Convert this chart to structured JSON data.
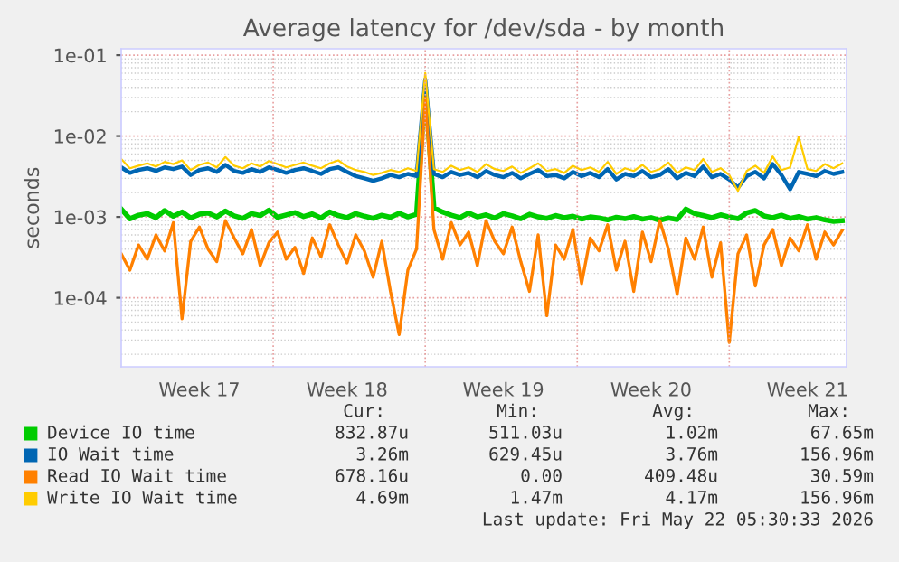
{
  "chart_data": {
    "type": "line",
    "title": "Average latency for /dev/sda - by month",
    "ylabel": "seconds",
    "log": "y",
    "grid": true,
    "legend": "bottom",
    "marker": "none",
    "line_style": "solid",
    "ylim": [
      1.4e-05,
      0.12
    ],
    "yticks": [
      {
        "value": 0.0001,
        "label": "1e-04"
      },
      {
        "value": 0.001,
        "label": "1e-03"
      },
      {
        "value": 0.01,
        "label": "1e-02"
      },
      {
        "value": 0.1,
        "label": "1e-01"
      }
    ],
    "categories": [
      null,
      null,
      null,
      null,
      null,
      null,
      null,
      null,
      null,
      "Week 17",
      null,
      null,
      null,
      null,
      null,
      null,
      null,
      null,
      null,
      null,
      null,
      null,
      null,
      null,
      null,
      null,
      "Week 18",
      null,
      null,
      null,
      null,
      null,
      null,
      null,
      null,
      null,
      null,
      null,
      null,
      null,
      null,
      null,
      null,
      null,
      "Week 19",
      null,
      null,
      null,
      null,
      null,
      null,
      null,
      null,
      null,
      null,
      null,
      null,
      null,
      null,
      null,
      null,
      "Week 20",
      null,
      null,
      null,
      null,
      null,
      null,
      null,
      null,
      null,
      null,
      null,
      null,
      null,
      null,
      null,
      null,
      null,
      "Week 21",
      null,
      null,
      null,
      null
    ],
    "series": [
      {
        "name": "Device IO time",
        "color": "#00cc00",
        "values": [
          0.00125,
          0.00095,
          0.00105,
          0.0011,
          0.00098,
          0.0012,
          0.00102,
          0.00115,
          0.00097,
          0.00108,
          0.00112,
          0.001,
          0.00118,
          0.00103,
          0.00096,
          0.0011,
          0.00104,
          0.00121,
          0.00099,
          0.00106,
          0.00113,
          0.00101,
          0.00109,
          0.00097,
          0.00115,
          0.00104,
          0.00098,
          0.0011,
          0.00102,
          0.00096,
          0.00105,
          0.00099,
          0.00111,
          0.001,
          0.00108,
          0.04,
          0.0013,
          0.00115,
          0.00105,
          0.00098,
          0.00112,
          0.001,
          0.00106,
          0.00097,
          0.0011,
          0.00103,
          0.00095,
          0.00108,
          0.001,
          0.00096,
          0.00104,
          0.00098,
          0.00102,
          0.00094,
          0.001,
          0.00097,
          0.00092,
          0.00099,
          0.00095,
          0.00101,
          0.00094,
          0.00098,
          0.00091,
          0.00097,
          0.00093,
          0.00125,
          0.0011,
          0.00104,
          0.00098,
          0.00106,
          0.001,
          0.00095,
          0.00112,
          0.0012,
          0.00103,
          0.00098,
          0.00105,
          0.00096,
          0.00101,
          0.00094,
          0.00098,
          0.00092,
          0.00088,
          0.0009
        ]
      },
      {
        "name": "IO Wait time",
        "color": "#0066b3",
        "values": [
          0.0041,
          0.0035,
          0.0038,
          0.004,
          0.0037,
          0.0041,
          0.0039,
          0.0042,
          0.0033,
          0.0038,
          0.004,
          0.0036,
          0.0044,
          0.0037,
          0.0035,
          0.0039,
          0.0036,
          0.0041,
          0.0038,
          0.0035,
          0.0038,
          0.004,
          0.0037,
          0.0034,
          0.0039,
          0.0041,
          0.0036,
          0.0032,
          0.003,
          0.0028,
          0.003,
          0.0033,
          0.0031,
          0.0034,
          0.0032,
          0.05,
          0.0034,
          0.0031,
          0.0036,
          0.0033,
          0.0035,
          0.0031,
          0.0037,
          0.0033,
          0.0031,
          0.0035,
          0.003,
          0.0034,
          0.0038,
          0.0032,
          0.0033,
          0.003,
          0.0036,
          0.0032,
          0.0035,
          0.0031,
          0.0039,
          0.0029,
          0.0034,
          0.0032,
          0.0037,
          0.0031,
          0.0033,
          0.0039,
          0.003,
          0.0035,
          0.0032,
          0.0042,
          0.0031,
          0.0034,
          0.0029,
          0.0023,
          0.0032,
          0.0036,
          0.003,
          0.0045,
          0.0033,
          0.0022,
          0.0036,
          0.0034,
          0.0032,
          0.0037,
          0.0034,
          0.0036
        ]
      },
      {
        "name": "Read IO Wait time",
        "color": "#ff8000",
        "values": [
          0.00035,
          0.00022,
          0.00045,
          0.0003,
          0.0006,
          0.00038,
          0.00085,
          5.5e-05,
          0.0005,
          0.00075,
          0.0004,
          0.00028,
          0.0009,
          0.00055,
          0.00035,
          0.0007,
          0.00025,
          0.00048,
          0.00065,
          0.0003,
          0.00042,
          0.0002,
          0.00055,
          0.00032,
          0.0008,
          0.00045,
          0.00027,
          0.0006,
          0.00038,
          0.00018,
          0.0005,
          0.00012,
          3.5e-05,
          0.00022,
          0.0004,
          0.03,
          0.0007,
          0.0003,
          0.00085,
          0.00045,
          0.00065,
          0.00025,
          0.0009,
          0.0005,
          0.00035,
          0.00075,
          0.00028,
          0.00012,
          0.0006,
          6e-05,
          0.00045,
          0.0003,
          0.0007,
          0.00015,
          0.00055,
          0.00038,
          0.0008,
          0.00022,
          0.0005,
          0.00012,
          0.00065,
          0.00028,
          0.0009,
          0.0004,
          0.00011,
          0.00055,
          0.0003,
          0.00075,
          0.00018,
          0.00048,
          2.8e-05,
          0.00035,
          0.0006,
          0.00014,
          0.00045,
          0.0007,
          0.00025,
          0.00055,
          0.00038,
          0.0008,
          0.0003,
          0.00065,
          0.00045,
          0.00068
        ]
      },
      {
        "name": "Write IO Wait time",
        "color": "#ffcc00",
        "values": [
          0.0052,
          0.004,
          0.0043,
          0.0046,
          0.0042,
          0.0048,
          0.0045,
          0.005,
          0.0038,
          0.0044,
          0.0047,
          0.0041,
          0.0055,
          0.0043,
          0.004,
          0.0046,
          0.0042,
          0.0049,
          0.0045,
          0.0041,
          0.0044,
          0.0047,
          0.0043,
          0.004,
          0.0046,
          0.005,
          0.0042,
          0.0038,
          0.0036,
          0.0033,
          0.0035,
          0.0038,
          0.0036,
          0.004,
          0.0037,
          0.06,
          0.0039,
          0.0036,
          0.0043,
          0.0038,
          0.0041,
          0.0036,
          0.0045,
          0.0039,
          0.0037,
          0.0042,
          0.0035,
          0.004,
          0.0046,
          0.0037,
          0.0039,
          0.0035,
          0.0043,
          0.0038,
          0.0041,
          0.0036,
          0.0048,
          0.0034,
          0.004,
          0.0037,
          0.0044,
          0.0036,
          0.0039,
          0.0047,
          0.0035,
          0.0041,
          0.0038,
          0.0052,
          0.0036,
          0.004,
          0.0033,
          0.0021,
          0.0037,
          0.0043,
          0.0035,
          0.0056,
          0.0038,
          0.0041,
          0.0098,
          0.0039,
          0.0037,
          0.0045,
          0.004,
          0.0046
        ]
      }
    ],
    "annotations": [
      "Cur:",
      "Min:",
      "Avg:",
      "Max:",
      "832.87u",
      "511.03u",
      "1.02m",
      "67.65m",
      "3.26m",
      "629.45u",
      "3.76m",
      "156.96m",
      "678.16u",
      "0.00",
      "409.48u",
      "30.59m",
      "4.69m",
      "1.47m",
      "4.17m",
      "156.96m",
      "Last update: Fri May 22 05:30:33 2026"
    ]
  }
}
